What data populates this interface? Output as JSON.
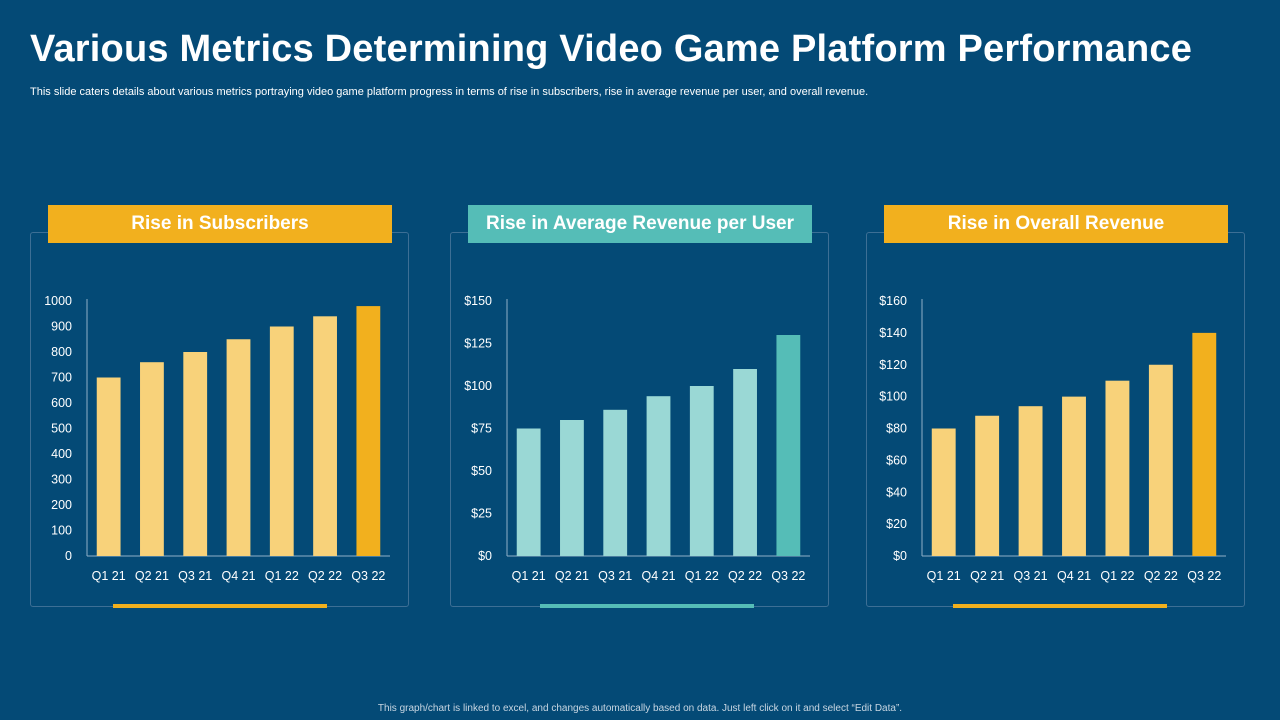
{
  "title": "Various Metrics Determining Video Game Platform Performance",
  "subtitle": "This slide caters details about various metrics portraying video game platform progress in terms of rise in subscribers, rise in average revenue per user, and overall revenue.",
  "footer": "This graph/chart is linked to excel, and changes automatically based on data. Just left click on it and select “Edit Data”.",
  "colors": {
    "background": "#044a76",
    "gold": "#f2b01e",
    "gold_light": "#f8d27a",
    "teal": "#55bdb7",
    "teal_light": "#9ad8d5"
  },
  "chart_data": [
    {
      "type": "bar",
      "title": "Rise in Subscribers",
      "categories": [
        "Q1 21",
        "Q2 21",
        "Q3 21",
        "Q4 21",
        "Q1 22",
        "Q2 22",
        "Q3 22"
      ],
      "values": [
        700,
        760,
        800,
        850,
        900,
        940,
        980
      ],
      "ylim": [
        0,
        1000
      ],
      "yticks": [
        0,
        100,
        200,
        300,
        400,
        500,
        600,
        700,
        800,
        900,
        1000
      ],
      "ytick_labels": [
        "0",
        "100",
        "200",
        "300",
        "400",
        "500",
        "600",
        "700",
        "800",
        "900",
        "1000"
      ],
      "xlabel": "",
      "ylabel": "",
      "theme": "gold"
    },
    {
      "type": "bar",
      "title": "Rise in Average Revenue per User",
      "categories": [
        "Q1 21",
        "Q2 21",
        "Q3 21",
        "Q4 21",
        "Q1 22",
        "Q2 22",
        "Q3 22"
      ],
      "values": [
        75,
        80,
        86,
        94,
        100,
        110,
        130
      ],
      "ylim": [
        0,
        150
      ],
      "yticks": [
        0,
        25,
        50,
        75,
        100,
        125,
        150
      ],
      "ytick_labels": [
        "$0",
        "$25",
        "$50",
        "$75",
        "$100",
        "$125",
        "$150"
      ],
      "xlabel": "",
      "ylabel": "",
      "theme": "teal"
    },
    {
      "type": "bar",
      "title": "Rise in Overall Revenue",
      "categories": [
        "Q1 21",
        "Q2 21",
        "Q3 21",
        "Q4 21",
        "Q1 22",
        "Q2 22",
        "Q3 22"
      ],
      "values": [
        80,
        88,
        94,
        100,
        110,
        120,
        140
      ],
      "ylim": [
        0,
        160
      ],
      "yticks": [
        0,
        20,
        40,
        60,
        80,
        100,
        120,
        140,
        160
      ],
      "ytick_labels": [
        "$0",
        "$20",
        "$40",
        "$60",
        "$80",
        "$100",
        "$120",
        "$140",
        "$160"
      ],
      "xlabel": "",
      "ylabel": "",
      "theme": "gold"
    }
  ]
}
